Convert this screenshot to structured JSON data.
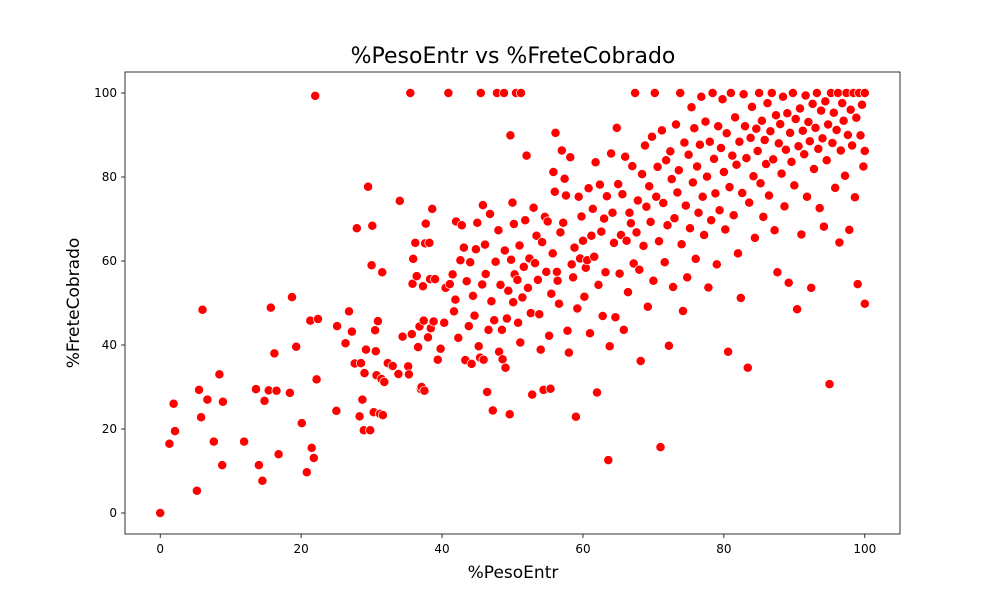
{
  "chart_data": {
    "type": "scatter",
    "title": "%PesoEntr vs %FreteCobrado",
    "xlabel": "%PesoEntr",
    "ylabel": "%FreteCobrado",
    "xlim": [
      -5,
      105
    ],
    "ylim": [
      -5,
      105
    ],
    "xticks": [
      0,
      20,
      40,
      60,
      80,
      100
    ],
    "yticks": [
      0,
      20,
      40,
      60,
      80,
      100
    ],
    "grid": false,
    "marker_color": "#ff0000",
    "marker_edge_color": "#ffffff",
    "points": [
      [
        0,
        0
      ],
      [
        1.3,
        16.5
      ],
      [
        1.9,
        26
      ],
      [
        2.1,
        19.5
      ],
      [
        5.2,
        5.3
      ],
      [
        5.5,
        29.3
      ],
      [
        5.8,
        22.8
      ],
      [
        6,
        48.4
      ],
      [
        6.7,
        27
      ],
      [
        7.6,
        17
      ],
      [
        8.4,
        33
      ],
      [
        8.8,
        11.4
      ],
      [
        8.9,
        26.5
      ],
      [
        11.9,
        17
      ],
      [
        13.6,
        29.5
      ],
      [
        14,
        11.4
      ],
      [
        14.5,
        7.7
      ],
      [
        14.8,
        26.7
      ],
      [
        15.4,
        29.2
      ],
      [
        15.7,
        48.9
      ],
      [
        16.2,
        38
      ],
      [
        16.5,
        29.1
      ],
      [
        16.8,
        14
      ],
      [
        18.4,
        28.6
      ],
      [
        18.7,
        51.4
      ],
      [
        19.3,
        39.6
      ],
      [
        20.1,
        21.4
      ],
      [
        20.8,
        9.7
      ],
      [
        21.3,
        45.8
      ],
      [
        21.5,
        15.5
      ],
      [
        21.8,
        13.1
      ],
      [
        22,
        99.3
      ],
      [
        22.2,
        31.8
      ],
      [
        22.4,
        46.2
      ],
      [
        25,
        24.3
      ],
      [
        25.1,
        44.5
      ],
      [
        26.3,
        40.4
      ],
      [
        26.8,
        48
      ],
      [
        27.2,
        43.2
      ],
      [
        27.6,
        35.6
      ],
      [
        27.9,
        67.8
      ],
      [
        28.3,
        23
      ],
      [
        28.5,
        35.7
      ],
      [
        28.7,
        27
      ],
      [
        28.9,
        19.7
      ],
      [
        29,
        33.3
      ],
      [
        29.2,
        38.9
      ],
      [
        29.5,
        77.7
      ],
      [
        29.8,
        19.7
      ],
      [
        30,
        59
      ],
      [
        30.1,
        68.4
      ],
      [
        30.3,
        24
      ],
      [
        30.5,
        43.5
      ],
      [
        30.6,
        38.5
      ],
      [
        30.7,
        32.8
      ],
      [
        30.9,
        45.7
      ],
      [
        31.2,
        23.6
      ],
      [
        31.4,
        31.9
      ],
      [
        31.5,
        57.3
      ],
      [
        31.6,
        23.3
      ],
      [
        31.8,
        31.2
      ],
      [
        32.3,
        35.7
      ],
      [
        33,
        35
      ],
      [
        33.8,
        33.1
      ],
      [
        34,
        74.3
      ],
      [
        34.4,
        42
      ],
      [
        35.2,
        34.9
      ],
      [
        35.3,
        33
      ],
      [
        35.5,
        100
      ],
      [
        35.7,
        42.6
      ],
      [
        35.8,
        54.6
      ],
      [
        35.9,
        60.5
      ],
      [
        36.2,
        64.3
      ],
      [
        36.4,
        56.4
      ],
      [
        36.6,
        39.5
      ],
      [
        36.8,
        44.4
      ],
      [
        37,
        29.5
      ],
      [
        37.1,
        30
      ],
      [
        37.3,
        54
      ],
      [
        37.4,
        45.8
      ],
      [
        37.5,
        29.1
      ],
      [
        37.6,
        64.2
      ],
      [
        37.7,
        68.9
      ],
      [
        38,
        41.8
      ],
      [
        38.2,
        64.3
      ],
      [
        38.3,
        55.7
      ],
      [
        38.4,
        44
      ],
      [
        38.6,
        72.4
      ],
      [
        38.8,
        45.6
      ],
      [
        39,
        55.7
      ],
      [
        39.4,
        36.5
      ],
      [
        39.8,
        39.1
      ],
      [
        40.3,
        45.3
      ],
      [
        40.5,
        53.6
      ],
      [
        40.9,
        100
      ],
      [
        41.1,
        54.5
      ],
      [
        41.5,
        56.8
      ],
      [
        41.7,
        48
      ],
      [
        41.9,
        50.8
      ],
      [
        42,
        69.4
      ],
      [
        42.3,
        41.7
      ],
      [
        42.6,
        60.2
      ],
      [
        42.8,
        68.5
      ],
      [
        43.1,
        63.2
      ],
      [
        43.3,
        36.4
      ],
      [
        43.5,
        55.2
      ],
      [
        43.8,
        44.5
      ],
      [
        44,
        59.7
      ],
      [
        44.2,
        35.5
      ],
      [
        44.4,
        51.7
      ],
      [
        44.6,
        47
      ],
      [
        44.8,
        62.8
      ],
      [
        45,
        69.1
      ],
      [
        45.2,
        39.7
      ],
      [
        45.4,
        37
      ],
      [
        45.5,
        100
      ],
      [
        45.7,
        54.4
      ],
      [
        45.8,
        73.3
      ],
      [
        45.9,
        36.5
      ],
      [
        46.1,
        63.9
      ],
      [
        46.2,
        56.9
      ],
      [
        46.4,
        28.8
      ],
      [
        46.6,
        43.6
      ],
      [
        46.8,
        71.2
      ],
      [
        47,
        50.4
      ],
      [
        47.2,
        24.4
      ],
      [
        47.4,
        45.9
      ],
      [
        47.6,
        59.8
      ],
      [
        47.8,
        100
      ],
      [
        48,
        67.3
      ],
      [
        48.1,
        38.4
      ],
      [
        48.3,
        54.3
      ],
      [
        48.5,
        43.6
      ],
      [
        48.6,
        36.6
      ],
      [
        48.8,
        100
      ],
      [
        48.9,
        62.5
      ],
      [
        49,
        34.6
      ],
      [
        49.2,
        46.3
      ],
      [
        49.4,
        52.9
      ],
      [
        49.6,
        23.5
      ],
      [
        49.7,
        89.9
      ],
      [
        49.8,
        60.3
      ],
      [
        50,
        73.9
      ],
      [
        50.1,
        50.2
      ],
      [
        50.2,
        68.8
      ],
      [
        50.3,
        56.8
      ],
      [
        50.5,
        100
      ],
      [
        50.7,
        55.5
      ],
      [
        50.8,
        45.3
      ],
      [
        51,
        63.7
      ],
      [
        51.1,
        40.6
      ],
      [
        51.2,
        100
      ],
      [
        51.4,
        51.3
      ],
      [
        51.6,
        58.6
      ],
      [
        51.8,
        69.7
      ],
      [
        52,
        85.1
      ],
      [
        52.2,
        53.6
      ],
      [
        52.4,
        60.6
      ],
      [
        52.6,
        47.6
      ],
      [
        52.8,
        28.2
      ],
      [
        53,
        72.7
      ],
      [
        53.2,
        59.5
      ],
      [
        53.4,
        66
      ],
      [
        53.6,
        55.5
      ],
      [
        53.8,
        47.3
      ],
      [
        54,
        38.9
      ],
      [
        54.2,
        64.5
      ],
      [
        54.4,
        29.3
      ],
      [
        54.6,
        70.5
      ],
      [
        54.8,
        57.4
      ],
      [
        55,
        69.4
      ],
      [
        55.2,
        42.2
      ],
      [
        55.4,
        29.6
      ],
      [
        55.5,
        52.2
      ],
      [
        55.7,
        61.8
      ],
      [
        55.8,
        81.2
      ],
      [
        56,
        76.5
      ],
      [
        56.1,
        90.5
      ],
      [
        56.3,
        57.4
      ],
      [
        56.4,
        55.3
      ],
      [
        56.6,
        49.8
      ],
      [
        56.8,
        66.8
      ],
      [
        57,
        86.3
      ],
      [
        57.2,
        69.1
      ],
      [
        57.4,
        79.6
      ],
      [
        57.6,
        75.6
      ],
      [
        57.8,
        43.4
      ],
      [
        58,
        38.2
      ],
      [
        58.2,
        84.7
      ],
      [
        58.4,
        59.2
      ],
      [
        58.6,
        56.1
      ],
      [
        58.8,
        63.2
      ],
      [
        59,
        22.9
      ],
      [
        59.2,
        48.7
      ],
      [
        59.4,
        75.3
      ],
      [
        59.6,
        60.6
      ],
      [
        59.8,
        70.6
      ],
      [
        60,
        64.8
      ],
      [
        60.2,
        51.5
      ],
      [
        60.4,
        58.4
      ],
      [
        60.6,
        60.2
      ],
      [
        60.8,
        77.3
      ],
      [
        61,
        42.8
      ],
      [
        61.2,
        66
      ],
      [
        61.4,
        72.4
      ],
      [
        61.6,
        61
      ],
      [
        61.8,
        83.5
      ],
      [
        62,
        28.7
      ],
      [
        62.2,
        54.3
      ],
      [
        62.4,
        78.2
      ],
      [
        62.6,
        67
      ],
      [
        62.8,
        46.9
      ],
      [
        63,
        70.1
      ],
      [
        63.2,
        57.3
      ],
      [
        63.4,
        75.4
      ],
      [
        63.6,
        12.6
      ],
      [
        63.8,
        39.7
      ],
      [
        64,
        85.6
      ],
      [
        64.2,
        71.5
      ],
      [
        64.4,
        64.3
      ],
      [
        64.6,
        46.6
      ],
      [
        64.8,
        91.7
      ],
      [
        65,
        78.3
      ],
      [
        65.2,
        57
      ],
      [
        65.4,
        66.2
      ],
      [
        65.6,
        75.9
      ],
      [
        65.8,
        43.6
      ],
      [
        66,
        84.8
      ],
      [
        66.2,
        64.8
      ],
      [
        66.4,
        52.6
      ],
      [
        66.6,
        71.5
      ],
      [
        66.8,
        69
      ],
      [
        67,
        82.6
      ],
      [
        67.2,
        59.4
      ],
      [
        67.4,
        100
      ],
      [
        67.6,
        66.8
      ],
      [
        67.8,
        74.4
      ],
      [
        68,
        57.9
      ],
      [
        68.2,
        36.2
      ],
      [
        68.4,
        80.7
      ],
      [
        68.6,
        63.6
      ],
      [
        68.8,
        87.5
      ],
      [
        69,
        72.9
      ],
      [
        69.2,
        49.1
      ],
      [
        69.4,
        77.8
      ],
      [
        69.6,
        69.3
      ],
      [
        69.8,
        89.6
      ],
      [
        70,
        55.3
      ],
      [
        70.2,
        100
      ],
      [
        70.4,
        75.3
      ],
      [
        70.6,
        82.4
      ],
      [
        70.8,
        64.7
      ],
      [
        71,
        15.7
      ],
      [
        71.2,
        91.1
      ],
      [
        71.4,
        73.8
      ],
      [
        71.6,
        59.7
      ],
      [
        71.8,
        84
      ],
      [
        72,
        68.5
      ],
      [
        72.2,
        39.8
      ],
      [
        72.4,
        86.1
      ],
      [
        72.6,
        79.5
      ],
      [
        72.8,
        53.8
      ],
      [
        73,
        70.2
      ],
      [
        73.2,
        92.5
      ],
      [
        73.4,
        76.3
      ],
      [
        73.6,
        81.6
      ],
      [
        73.8,
        100
      ],
      [
        74,
        64
      ],
      [
        74.2,
        48.1
      ],
      [
        74.4,
        88.2
      ],
      [
        74.6,
        73.2
      ],
      [
        74.8,
        56.1
      ],
      [
        75,
        85.3
      ],
      [
        75.2,
        67.8
      ],
      [
        75.4,
        96.6
      ],
      [
        75.6,
        78.7
      ],
      [
        75.8,
        91.6
      ],
      [
        76,
        60.5
      ],
      [
        76.2,
        82.5
      ],
      [
        76.4,
        71.5
      ],
      [
        76.6,
        87.7
      ],
      [
        76.8,
        99.1
      ],
      [
        77,
        75.3
      ],
      [
        77.2,
        66.2
      ],
      [
        77.4,
        93.2
      ],
      [
        77.6,
        80.1
      ],
      [
        77.8,
        53.7
      ],
      [
        78,
        88.4
      ],
      [
        78.2,
        69.7
      ],
      [
        78.4,
        100
      ],
      [
        78.6,
        84.3
      ],
      [
        78.8,
        76.1
      ],
      [
        79,
        59.2
      ],
      [
        79.2,
        92.1
      ],
      [
        79.4,
        72.1
      ],
      [
        79.6,
        86.9
      ],
      [
        79.8,
        98.5
      ],
      [
        80,
        81.2
      ],
      [
        80.2,
        67.5
      ],
      [
        80.4,
        90.4
      ],
      [
        80.6,
        38.4
      ],
      [
        80.8,
        77.6
      ],
      [
        81,
        100
      ],
      [
        81.2,
        85.1
      ],
      [
        81.4,
        70.9
      ],
      [
        81.6,
        94.2
      ],
      [
        81.8,
        82.9
      ],
      [
        82,
        61.8
      ],
      [
        82.2,
        88.4
      ],
      [
        82.4,
        51.2
      ],
      [
        82.6,
        76.2
      ],
      [
        82.8,
        99.7
      ],
      [
        83,
        92.1
      ],
      [
        83.2,
        84.5
      ],
      [
        83.4,
        34.6
      ],
      [
        83.6,
        73.9
      ],
      [
        83.8,
        89.3
      ],
      [
        84,
        96.7
      ],
      [
        84.2,
        80.2
      ],
      [
        84.4,
        65.5
      ],
      [
        84.6,
        91.5
      ],
      [
        84.8,
        86.2
      ],
      [
        85,
        100
      ],
      [
        85.2,
        78.5
      ],
      [
        85.4,
        93.4
      ],
      [
        85.6,
        70.5
      ],
      [
        85.8,
        88.8
      ],
      [
        86,
        83.1
      ],
      [
        86.2,
        97.6
      ],
      [
        86.4,
        75.6
      ],
      [
        86.6,
        90.9
      ],
      [
        86.8,
        100
      ],
      [
        87,
        84.2
      ],
      [
        87.2,
        67.3
      ],
      [
        87.4,
        94.7
      ],
      [
        87.6,
        57.3
      ],
      [
        87.8,
        88
      ],
      [
        88,
        92.6
      ],
      [
        88.2,
        80.8
      ],
      [
        88.4,
        99.1
      ],
      [
        88.6,
        73
      ],
      [
        88.8,
        86.5
      ],
      [
        89,
        95.2
      ],
      [
        89.2,
        54.8
      ],
      [
        89.4,
        90.5
      ],
      [
        89.6,
        83.6
      ],
      [
        89.8,
        100
      ],
      [
        90,
        78
      ],
      [
        90.2,
        93.8
      ],
      [
        90.4,
        48.5
      ],
      [
        90.6,
        87.3
      ],
      [
        90.8,
        96.3
      ],
      [
        91,
        66.3
      ],
      [
        91.2,
        91
      ],
      [
        91.4,
        85.4
      ],
      [
        91.6,
        99.4
      ],
      [
        91.8,
        75.3
      ],
      [
        92,
        93.1
      ],
      [
        92.2,
        88.5
      ],
      [
        92.4,
        53.6
      ],
      [
        92.6,
        97.4
      ],
      [
        92.8,
        81.9
      ],
      [
        93,
        91.7
      ],
      [
        93.2,
        100
      ],
      [
        93.4,
        86.7
      ],
      [
        93.6,
        72.6
      ],
      [
        93.8,
        95.8
      ],
      [
        94,
        89.2
      ],
      [
        94.2,
        68.2
      ],
      [
        94.4,
        98
      ],
      [
        94.6,
        84
      ],
      [
        94.8,
        92.5
      ],
      [
        95,
        30.7
      ],
      [
        95.2,
        100
      ],
      [
        95.4,
        88.1
      ],
      [
        95.6,
        95.3
      ],
      [
        95.8,
        77.4
      ],
      [
        96,
        91.2
      ],
      [
        96.2,
        100
      ],
      [
        96.4,
        64.4
      ],
      [
        96.6,
        86.3
      ],
      [
        96.8,
        97.6
      ],
      [
        97,
        93.4
      ],
      [
        97.2,
        80.3
      ],
      [
        97.4,
        100
      ],
      [
        97.6,
        90
      ],
      [
        97.8,
        67.4
      ],
      [
        98,
        96
      ],
      [
        98.2,
        87.5
      ],
      [
        98.4,
        100
      ],
      [
        98.6,
        75.2
      ],
      [
        98.8,
        94.1
      ],
      [
        99,
        54.5
      ],
      [
        99.2,
        100
      ],
      [
        99.4,
        89.9
      ],
      [
        99.6,
        97.2
      ],
      [
        99.8,
        82.5
      ],
      [
        100,
        100
      ],
      [
        100,
        49.8
      ],
      [
        100,
        86.2
      ]
    ]
  }
}
